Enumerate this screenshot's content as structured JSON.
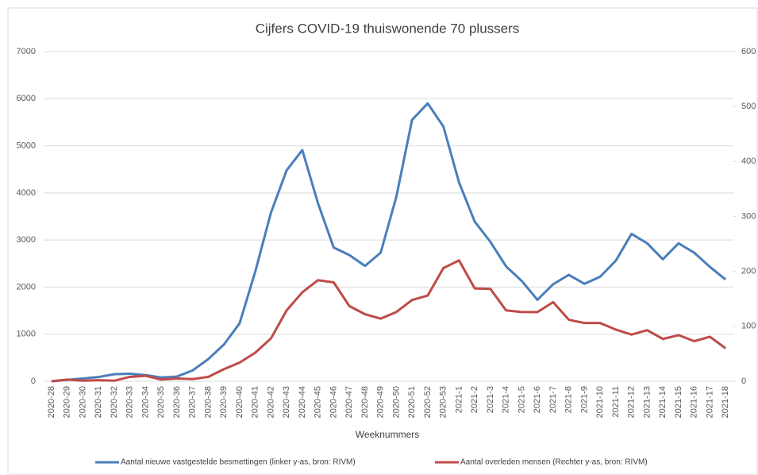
{
  "chart_data": {
    "type": "line",
    "title": "Cijfers COVID-19 thuiswonende 70 plussers",
    "x_label": "Weeknummers",
    "categories": [
      "2020-28",
      "2020-29",
      "2020-30",
      "2020-31",
      "2020-32",
      "2020-33",
      "2020-34",
      "2020-35",
      "2020-36",
      "2020-37",
      "2020-38",
      "2020-39",
      "2020-40",
      "2020-41",
      "2020-42",
      "2020-43",
      "2020-44",
      "2020-45",
      "2020-46",
      "2020-47",
      "2020-48",
      "2020-49",
      "2020-50",
      "2020-51",
      "2020-52",
      "2020-53",
      "2021-1",
      "2021-2",
      "2021-3",
      "2021-4",
      "2021-5",
      "2021-6",
      "2021-7",
      "2021-8",
      "2021-9",
      "2021-10",
      "2021-11",
      "2021-12",
      "2021-13",
      "2021-14",
      "2021-15",
      "2021-16",
      "2021-17",
      "2021-18"
    ],
    "series": [
      {
        "name": "Aantal nieuwe vastgestelde besmettingen (linker y-as, bron: RIVM)",
        "color": "#4a7ebb",
        "axis": "y",
        "values": [
          0,
          30,
          60,
          90,
          150,
          160,
          130,
          80,
          100,
          230,
          470,
          780,
          1230,
          2330,
          3580,
          4480,
          4910,
          3780,
          2840,
          2680,
          2450,
          2730,
          3920,
          5550,
          5900,
          5410,
          4220,
          3390,
          2960,
          2440,
          2130,
          1730,
          2060,
          2260,
          2070,
          2220,
          2560,
          3130,
          2930,
          2590,
          2930,
          2730,
          2430,
          2160
        ]
      },
      {
        "name": "Aantal overleden mensen (Rechter y-as, bron: RIVM)",
        "color": "#be4b48",
        "axis": "y2",
        "values": [
          0,
          3,
          1,
          2,
          1,
          8,
          10,
          3,
          5,
          4,
          8,
          22,
          34,
          52,
          78,
          129,
          162,
          184,
          180,
          137,
          122,
          114,
          126,
          148,
          156,
          206,
          220,
          169,
          168,
          129,
          126,
          126,
          144,
          112,
          106,
          106,
          94,
          85,
          93,
          77,
          84,
          73,
          81,
          60
        ]
      }
    ],
    "ylim": [
      0,
      7000
    ],
    "yticks": [
      0,
      1000,
      2000,
      3000,
      4000,
      5000,
      6000,
      7000
    ],
    "y2lim": [
      0,
      600
    ],
    "y2ticks": [
      0,
      100,
      200,
      300,
      400,
      500,
      600
    ],
    "grid": true
  }
}
